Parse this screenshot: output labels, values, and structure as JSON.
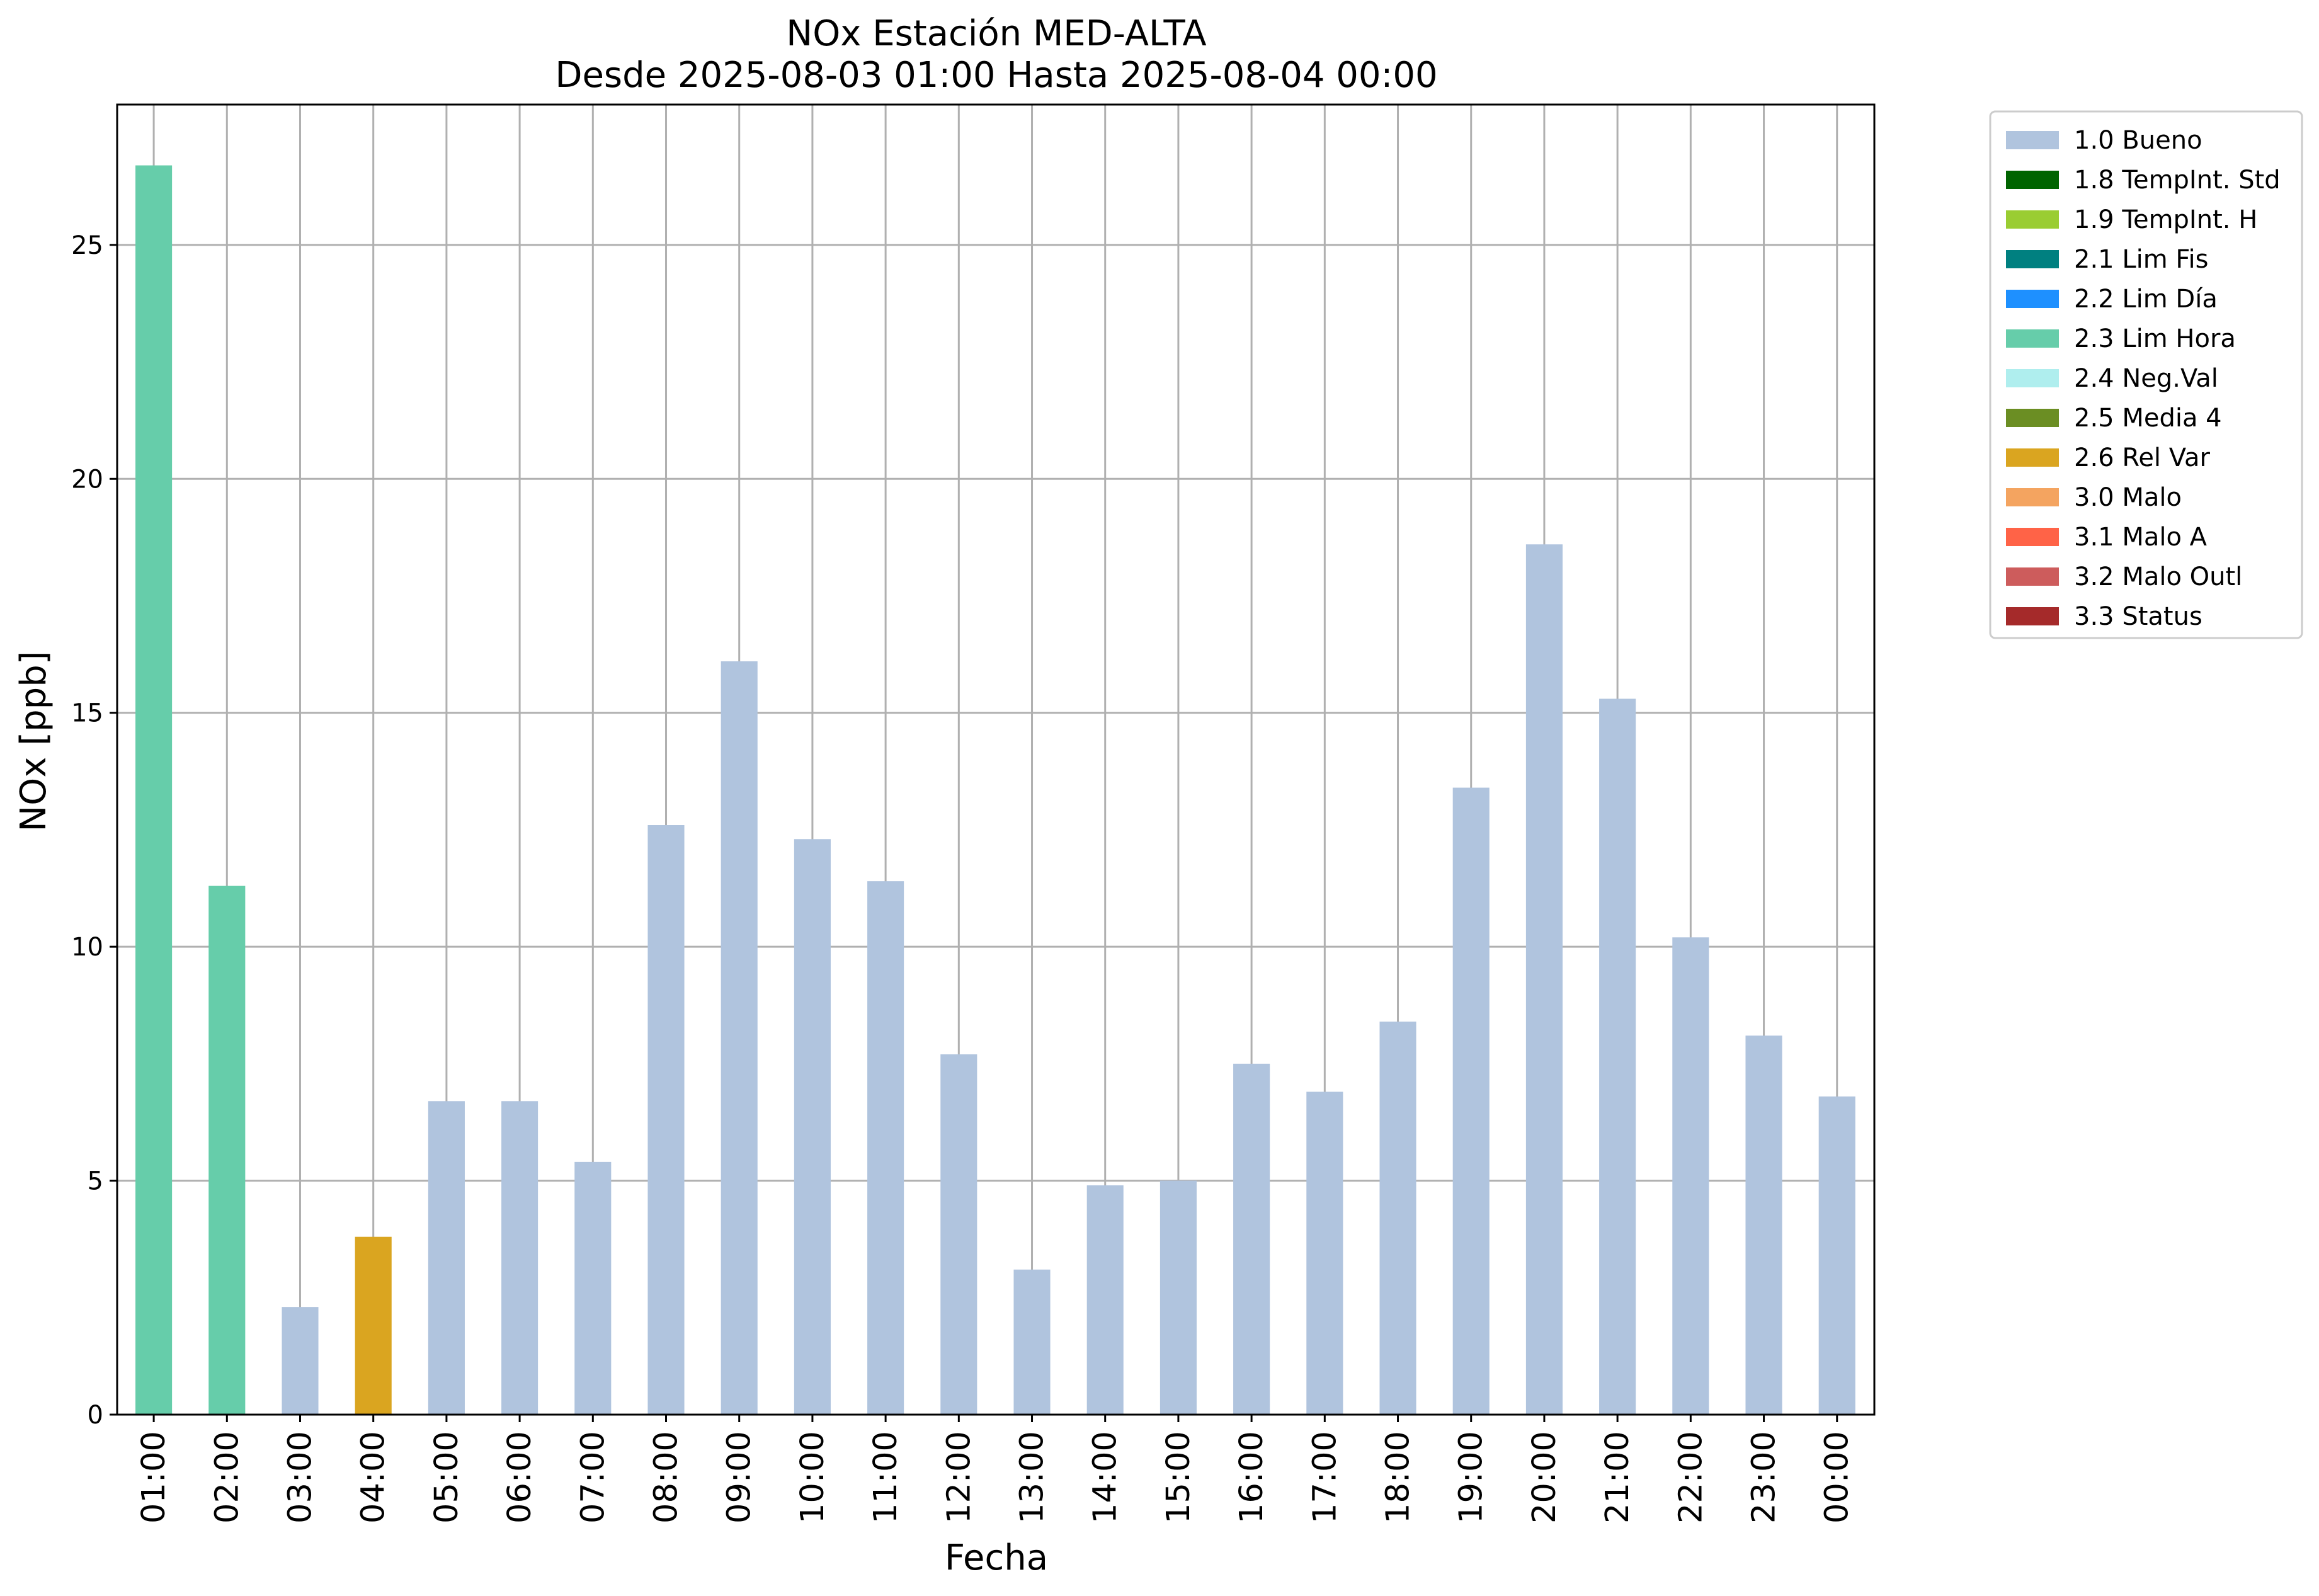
{
  "chart_data": {
    "type": "bar",
    "title": "NOx Estación MED-ALTA",
    "subtitle": "Desde 2025-08-03 01:00 Hasta 2025-08-04 00:00",
    "xlabel": "Fecha",
    "ylabel": "NOx [ppb]",
    "ylim": [
      0,
      28
    ],
    "yticks": [
      "0",
      "5",
      "10",
      "15",
      "20",
      "25"
    ],
    "grid": true,
    "legend_position": "outside top-right",
    "categories": [
      "01:00",
      "02:00",
      "03:00",
      "04:00",
      "05:00",
      "06:00",
      "07:00",
      "08:00",
      "09:00",
      "10:00",
      "11:00",
      "12:00",
      "13:00",
      "14:00",
      "15:00",
      "16:00",
      "17:00",
      "18:00",
      "19:00",
      "20:00",
      "21:00",
      "22:00",
      "23:00",
      "00:00"
    ],
    "values": [
      26.7,
      11.3,
      2.3,
      3.8,
      6.7,
      6.7,
      5.4,
      12.6,
      16.1,
      12.3,
      11.4,
      7.7,
      3.1,
      4.9,
      5.0,
      7.5,
      6.9,
      8.4,
      13.4,
      18.6,
      15.3,
      10.2,
      8.1,
      6.8
    ],
    "flags": [
      "2.3 Lim Hora",
      "2.3 Lim Hora",
      "1.0 Bueno",
      "2.6 Rel Var",
      "1.0 Bueno",
      "1.0 Bueno",
      "1.0 Bueno",
      "1.0 Bueno",
      "1.0 Bueno",
      "1.0 Bueno",
      "1.0 Bueno",
      "1.0 Bueno",
      "1.0 Bueno",
      "1.0 Bueno",
      "1.0 Bueno",
      "1.0 Bueno",
      "1.0 Bueno",
      "1.0 Bueno",
      "1.0 Bueno",
      "1.0 Bueno",
      "1.0 Bueno",
      "1.0 Bueno",
      "1.0 Bueno",
      "1.0 Bueno"
    ],
    "legend": [
      {
        "label": "1.0 Bueno",
        "color": "#b0c4de"
      },
      {
        "label": "1.8 TempInt. Std",
        "color": "#006400"
      },
      {
        "label": "1.9 TempInt. H",
        "color": "#9acd32"
      },
      {
        "label": "2.1 Lim Fis",
        "color": "#008080"
      },
      {
        "label": "2.2 Lim Día",
        "color": "#1e90ff"
      },
      {
        "label": "2.3 Lim Hora",
        "color": "#66cdaa"
      },
      {
        "label": "2.4 Neg.Val",
        "color": "#afeeee"
      },
      {
        "label": "2.5 Media 4",
        "color": "#6b8e23"
      },
      {
        "label": "2.6 Rel Var",
        "color": "#daa520"
      },
      {
        "label": "3.0 Malo",
        "color": "#f4a460"
      },
      {
        "label": "3.1 Malo A",
        "color": "#ff6347"
      },
      {
        "label": "3.2 Malo Outl",
        "color": "#cd5c5c"
      },
      {
        "label": "3.3 Status",
        "color": "#a52a2a"
      }
    ]
  }
}
